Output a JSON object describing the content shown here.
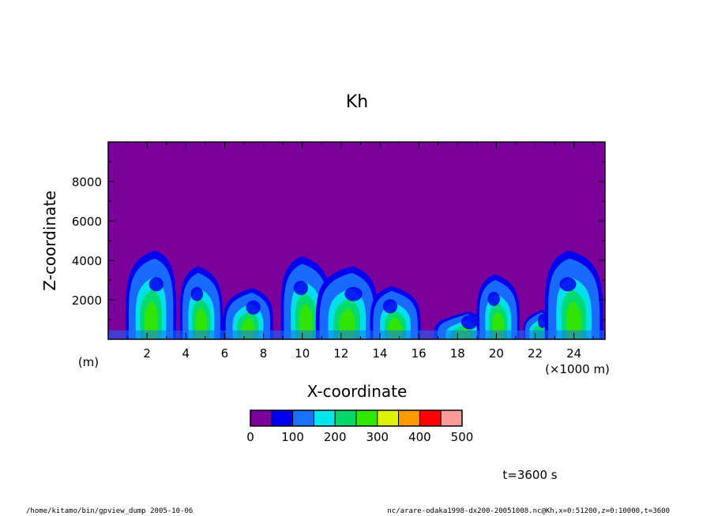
{
  "chart_data": {
    "type": "heatmap",
    "title": "Kh",
    "xlabel": "X-coordinate",
    "ylabel": "Z-coordinate",
    "x_unit_label": "(×1000 m)",
    "y_unit_label": "(m)",
    "xlim": [
      0,
      25.6
    ],
    "ylim": [
      0,
      10000
    ],
    "x_ticks": [
      "2",
      "4",
      "6",
      "8",
      "10",
      "12",
      "14",
      "16",
      "18",
      "20",
      "22",
      "24"
    ],
    "y_ticks": [
      "2000",
      "4000",
      "6000",
      "8000"
    ],
    "colorbar": {
      "levels": [
        0,
        50,
        100,
        150,
        200,
        250,
        300,
        350,
        400,
        450,
        500
      ],
      "tick_labels": [
        "0",
        "100",
        "200",
        "300",
        "400",
        "500"
      ],
      "colors": [
        "#7b009b",
        "#0000ee",
        "#1a70ff",
        "#00e6ee",
        "#00d96a",
        "#33e600",
        "#ddf200",
        "#ff9900",
        "#ff0000",
        "#ff9a9a"
      ]
    },
    "plumes": [
      {
        "x_center": 2.2,
        "half_width": 1.3,
        "top_z": 4500,
        "intensity": 2
      },
      {
        "x_center": 4.8,
        "half_width": 1.1,
        "top_z": 3700,
        "intensity": 3
      },
      {
        "x_center": 7.2,
        "half_width": 1.3,
        "top_z": 2600,
        "intensity": 2
      },
      {
        "x_center": 10.2,
        "half_width": 1.3,
        "top_z": 4200,
        "intensity": 2
      },
      {
        "x_center": 12.3,
        "half_width": 1.6,
        "top_z": 3700,
        "intensity": 3
      },
      {
        "x_center": 14.8,
        "half_width": 1.3,
        "top_z": 2700,
        "intensity": 3
      },
      {
        "x_center": 18.3,
        "half_width": 1.5,
        "top_z": 1400,
        "intensity": 2
      },
      {
        "x_center": 20.1,
        "half_width": 1.1,
        "top_z": 3300,
        "intensity": 3
      },
      {
        "x_center": 22.2,
        "half_width": 0.8,
        "top_z": 1500,
        "intensity": 1
      },
      {
        "x_center": 24.0,
        "half_width": 1.5,
        "top_z": 4500,
        "intensity": 2
      }
    ],
    "time_label": "t=3600 s"
  },
  "footer": {
    "left": "/home/kitamo/bin/gpview_dump  2005-10-06",
    "right": "nc/arare-odaka1998-dx200-20051008.nc@Kh,x=0:51200,z=0:10000,t=3600"
  }
}
